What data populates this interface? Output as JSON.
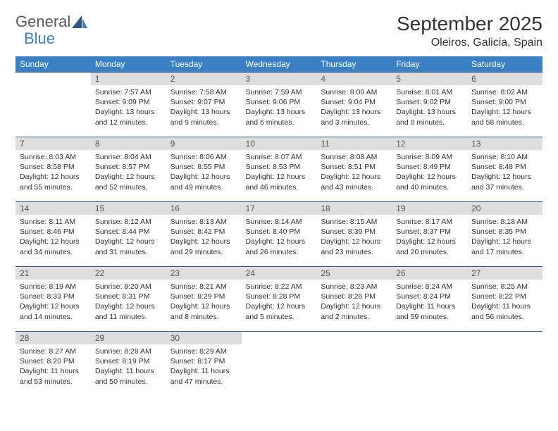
{
  "logo": {
    "word1": "General",
    "word2": "Blue"
  },
  "title": "September 2025",
  "location": "Oleiros, Galicia, Spain",
  "colors": {
    "header_bg": "#3a80c3",
    "header_text": "#ffffff",
    "daynum_bg": "#dedede",
    "daynum_text": "#555555",
    "border": "#2b5a8a",
    "body_text": "#333333",
    "logo_gray": "#5a5a5a",
    "logo_blue": "#3a80c3"
  },
  "weekdays": [
    "Sunday",
    "Monday",
    "Tuesday",
    "Wednesday",
    "Thursday",
    "Friday",
    "Saturday"
  ],
  "weeks": [
    [
      null,
      {
        "n": "1",
        "sunrise": "7:57 AM",
        "sunset": "9:09 PM",
        "daylight": "13 hours and 12 minutes."
      },
      {
        "n": "2",
        "sunrise": "7:58 AM",
        "sunset": "9:07 PM",
        "daylight": "13 hours and 9 minutes."
      },
      {
        "n": "3",
        "sunrise": "7:59 AM",
        "sunset": "9:06 PM",
        "daylight": "13 hours and 6 minutes."
      },
      {
        "n": "4",
        "sunrise": "8:00 AM",
        "sunset": "9:04 PM",
        "daylight": "13 hours and 3 minutes."
      },
      {
        "n": "5",
        "sunrise": "8:01 AM",
        "sunset": "9:02 PM",
        "daylight": "13 hours and 0 minutes."
      },
      {
        "n": "6",
        "sunrise": "8:02 AM",
        "sunset": "9:00 PM",
        "daylight": "12 hours and 58 minutes."
      }
    ],
    [
      {
        "n": "7",
        "sunrise": "8:03 AM",
        "sunset": "8:58 PM",
        "daylight": "12 hours and 55 minutes."
      },
      {
        "n": "8",
        "sunrise": "8:04 AM",
        "sunset": "8:57 PM",
        "daylight": "12 hours and 52 minutes."
      },
      {
        "n": "9",
        "sunrise": "8:06 AM",
        "sunset": "8:55 PM",
        "daylight": "12 hours and 49 minutes."
      },
      {
        "n": "10",
        "sunrise": "8:07 AM",
        "sunset": "8:53 PM",
        "daylight": "12 hours and 46 minutes."
      },
      {
        "n": "11",
        "sunrise": "8:08 AM",
        "sunset": "8:51 PM",
        "daylight": "12 hours and 43 minutes."
      },
      {
        "n": "12",
        "sunrise": "8:09 AM",
        "sunset": "8:49 PM",
        "daylight": "12 hours and 40 minutes."
      },
      {
        "n": "13",
        "sunrise": "8:10 AM",
        "sunset": "8:48 PM",
        "daylight": "12 hours and 37 minutes."
      }
    ],
    [
      {
        "n": "14",
        "sunrise": "8:11 AM",
        "sunset": "8:46 PM",
        "daylight": "12 hours and 34 minutes."
      },
      {
        "n": "15",
        "sunrise": "8:12 AM",
        "sunset": "8:44 PM",
        "daylight": "12 hours and 31 minutes."
      },
      {
        "n": "16",
        "sunrise": "8:13 AM",
        "sunset": "8:42 PM",
        "daylight": "12 hours and 29 minutes."
      },
      {
        "n": "17",
        "sunrise": "8:14 AM",
        "sunset": "8:40 PM",
        "daylight": "12 hours and 26 minutes."
      },
      {
        "n": "18",
        "sunrise": "8:15 AM",
        "sunset": "8:39 PM",
        "daylight": "12 hours and 23 minutes."
      },
      {
        "n": "19",
        "sunrise": "8:17 AM",
        "sunset": "8:37 PM",
        "daylight": "12 hours and 20 minutes."
      },
      {
        "n": "20",
        "sunrise": "8:18 AM",
        "sunset": "8:35 PM",
        "daylight": "12 hours and 17 minutes."
      }
    ],
    [
      {
        "n": "21",
        "sunrise": "8:19 AM",
        "sunset": "8:33 PM",
        "daylight": "12 hours and 14 minutes."
      },
      {
        "n": "22",
        "sunrise": "8:20 AM",
        "sunset": "8:31 PM",
        "daylight": "12 hours and 11 minutes."
      },
      {
        "n": "23",
        "sunrise": "8:21 AM",
        "sunset": "8:29 PM",
        "daylight": "12 hours and 8 minutes."
      },
      {
        "n": "24",
        "sunrise": "8:22 AM",
        "sunset": "8:28 PM",
        "daylight": "12 hours and 5 minutes."
      },
      {
        "n": "25",
        "sunrise": "8:23 AM",
        "sunset": "8:26 PM",
        "daylight": "12 hours and 2 minutes."
      },
      {
        "n": "26",
        "sunrise": "8:24 AM",
        "sunset": "8:24 PM",
        "daylight": "11 hours and 59 minutes."
      },
      {
        "n": "27",
        "sunrise": "8:25 AM",
        "sunset": "8:22 PM",
        "daylight": "11 hours and 56 minutes."
      }
    ],
    [
      {
        "n": "28",
        "sunrise": "8:27 AM",
        "sunset": "8:20 PM",
        "daylight": "11 hours and 53 minutes."
      },
      {
        "n": "29",
        "sunrise": "8:28 AM",
        "sunset": "8:19 PM",
        "daylight": "11 hours and 50 minutes."
      },
      {
        "n": "30",
        "sunrise": "8:29 AM",
        "sunset": "8:17 PM",
        "daylight": "11 hours and 47 minutes."
      },
      null,
      null,
      null,
      null
    ]
  ],
  "labels": {
    "sunrise": "Sunrise:",
    "sunset": "Sunset:",
    "daylight": "Daylight:"
  }
}
